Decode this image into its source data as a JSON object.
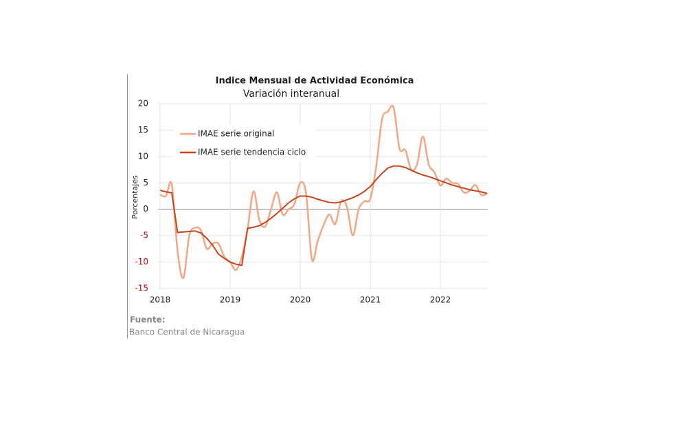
{
  "chart_data": {
    "type": "line",
    "title": "Indice Mensual de  Actividad Económica",
    "subtitle": "Variación interanual",
    "y_label": "Porcentajes",
    "source_label": "Fuente:",
    "source": "Banco Central de Nicaragua",
    "categories": [
      "2018",
      null,
      null,
      null,
      null,
      null,
      null,
      null,
      null,
      null,
      null,
      null,
      "2019",
      null,
      null,
      null,
      null,
      null,
      null,
      null,
      null,
      null,
      null,
      null,
      "2020",
      null,
      null,
      null,
      null,
      null,
      null,
      null,
      null,
      null,
      null,
      null,
      "2021",
      null,
      null,
      null,
      null,
      null,
      null,
      null,
      null,
      null,
      null,
      null,
      "2022",
      null,
      null,
      null,
      null,
      null,
      null,
      null,
      null
    ],
    "series": [
      {
        "name": "IMAE serie original",
        "color": "#f4a582",
        "values": [
          2.8,
          2.5,
          4.7,
          -8,
          -13,
          -5,
          -3.5,
          -4,
          -7.5,
          -6.5,
          -6.5,
          -9,
          -10,
          -11.5,
          -9,
          -3.6,
          3.4,
          -2,
          -3.3,
          0,
          3.2,
          -1,
          0,
          1,
          5,
          3,
          -9.5,
          -6,
          -3,
          -1,
          -2.8,
          1.5,
          0.5,
          -5,
          0,
          1.5,
          2,
          8,
          17,
          18.5,
          19.2,
          11.5,
          11.2,
          7.5,
          8.5,
          13.8,
          8.5,
          7,
          4.5,
          5.8,
          5,
          4.8,
          3.2,
          3.5,
          4.6,
          2.7,
          3
        ]
      },
      {
        "name": "IMAE serie  tendencia ciclo",
        "color": "#c8441c",
        "values": [
          3.6,
          3.3,
          3.1,
          -4.4,
          -4.3,
          -4.2,
          -4.1,
          -4.5,
          -5.5,
          -6.8,
          -8.5,
          -9.3,
          -10,
          -10.4,
          -10.6,
          -3.6,
          -3.4,
          -3.1,
          -2.5,
          -1.7,
          -0.8,
          0.2,
          1.2,
          2,
          2.5,
          2.5,
          2.3,
          1.9,
          1.6,
          1.3,
          1.2,
          1.4,
          1.8,
          2.2,
          2.7,
          3.4,
          4.3,
          5.6,
          6.8,
          7.8,
          8.2,
          8.2,
          7.9,
          7.4,
          6.9,
          6.5,
          6.2,
          5.8,
          5.4,
          5,
          4.6,
          4.3,
          4,
          3.7,
          3.5,
          3.3,
          3
        ]
      }
    ],
    "ylim": [
      -15,
      20
    ],
    "yticks": [
      -15,
      -10,
      -5,
      0,
      5,
      10,
      15,
      20
    ],
    "negative_tick_color": "#c00000",
    "grid": true,
    "legend": "upper left"
  }
}
